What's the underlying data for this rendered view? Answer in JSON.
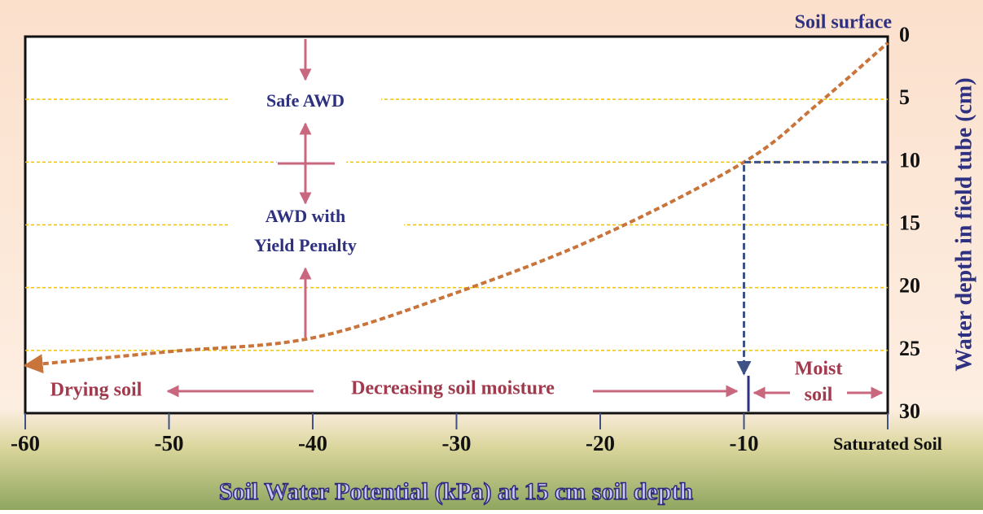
{
  "chart_data": {
    "type": "line",
    "title": "Soil surface",
    "x_label": "Soil Water Potential (kPa) at 15 cm soil depth",
    "y_label": "Water depth in field tube (cm)",
    "x": [
      -60,
      -50,
      -40,
      -30,
      -20,
      -10,
      -5,
      0
    ],
    "values": [
      26.2,
      25.1,
      24,
      20.4,
      15.9,
      10,
      5.5,
      0.5
    ],
    "color": "#c8743a",
    "xlim": [
      -60,
      0
    ],
    "xticks": [
      -60,
      -50,
      -40,
      -30,
      -20,
      -10,
      {
        "value": 0,
        "label": "Saturated Soil"
      }
    ],
    "ylim": [
      0,
      30
    ],
    "y_inverted": true,
    "yticks": [
      0,
      5,
      10,
      15,
      20,
      25,
      30
    ],
    "grid": true,
    "threshold": {
      "x": -10,
      "y": 10
    },
    "annotations": {
      "safe": "Safe AWD",
      "penalty": [
        "AWD with",
        "Yield Penalty"
      ],
      "drying": "Drying soil",
      "decreasing": "Decreasing soil moisture",
      "moist": [
        "Moist",
        "soil"
      ]
    }
  }
}
